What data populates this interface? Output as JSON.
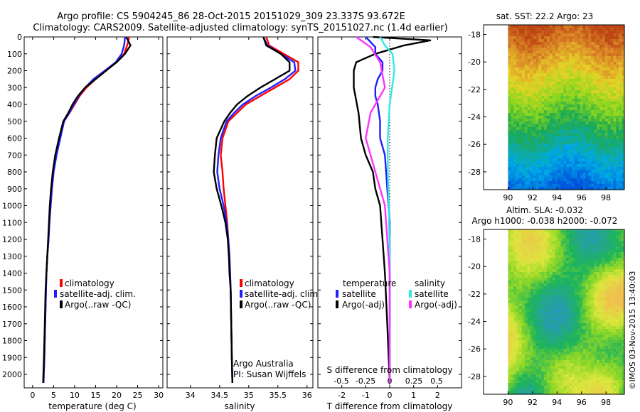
{
  "header": {
    "line1": "Argo profile: CS 5904245_86 28-Oct-2015 20151029_309 23.337S 93.672E",
    "line2": "Climatology: CARS2009. Satellite-adjusted climatology: synTS_20151027.nc (1.4d earlier)"
  },
  "colors": {
    "climatology": "#ff0000",
    "satellite": "#1f1fff",
    "argo": "#000000",
    "s_satellite": "#33e8e8",
    "s_argo": "#ff33ff"
  },
  "depth_axis": {
    "ylim": [
      0,
      2080
    ],
    "ticks": [
      0,
      100,
      200,
      300,
      400,
      500,
      600,
      700,
      800,
      900,
      1000,
      1100,
      1200,
      1300,
      1400,
      1500,
      1600,
      1700,
      1800,
      1900,
      2000
    ]
  },
  "panels": {
    "temperature": {
      "xlabel": "temperature (deg C)",
      "xlim": [
        -2,
        31
      ],
      "xticks": [
        0,
        5,
        10,
        15,
        20,
        25,
        30
      ],
      "legend": [
        "climatology",
        "satellite-adj. clim.",
        "Argo(..raw -QC)"
      ]
    },
    "salinity": {
      "xlabel": "salinity",
      "xlim": [
        33.6,
        36.1
      ],
      "xticks": [
        34,
        34.5,
        35,
        35.5,
        36
      ],
      "legend": [
        "climatology",
        "satellite-adj. clim.",
        "Argo(..raw -QC)"
      ],
      "note_line1": "Argo Australia",
      "note_line2": "PI: Susan Wijffels"
    },
    "difference": {
      "xlabel": "T difference from climatology",
      "top_label": "S difference from climatology",
      "xlim": [
        -3,
        3
      ],
      "xticks": [
        -2,
        -1,
        0,
        1,
        2
      ],
      "s_ticks": [
        "-0.5",
        "-0.25",
        "0",
        "0.25",
        "0.5"
      ],
      "legend_temperature_title": "temperature",
      "legend_salinity_title": "salinity",
      "legend": [
        "satellite",
        "Argo(-adj)",
        "satellite",
        "Argo(-adj)"
      ]
    }
  },
  "maps": {
    "sst": {
      "title": "sat. SST: 22.2 Argo: 23",
      "ylim": [
        -29.3,
        -17.3
      ],
      "yticks": [
        -18,
        -20,
        -22,
        -24,
        -26,
        -28
      ],
      "xticks": [
        90,
        92,
        94,
        96,
        98
      ],
      "xlim": [
        88,
        99.5
      ]
    },
    "sla": {
      "title_line1": "Altim. SLA: -0.032",
      "title_line2": "Argo h1000: -0.038 h2000: -0.072",
      "ylim": [
        -29.3,
        -17.3
      ],
      "yticks": [
        -18,
        -20,
        -22,
        -24,
        -26,
        -28
      ],
      "xticks": [
        90,
        92,
        94,
        96,
        98
      ],
      "xlim": [
        88,
        99.5
      ]
    }
  },
  "stamp": "©IMOS 03-Nov-2015 13:40:03",
  "chart_data": [
    {
      "type": "line",
      "panel": "temperature",
      "xlabel": "temperature (deg C)",
      "ylim": [
        0,
        2080
      ],
      "series": [
        {
          "name": "climatology",
          "x": [
            23.0,
            22.5,
            21.8,
            20.0,
            17.5,
            15.0,
            12.8,
            11.2,
            10.0,
            8.8,
            7.5,
            6.5,
            5.5,
            5.0,
            4.6,
            4.3,
            4.0,
            3.8,
            3.5,
            3.3,
            3.2,
            3.0,
            2.8,
            2.6
          ],
          "y": [
            0,
            50,
            100,
            150,
            200,
            250,
            300,
            350,
            400,
            450,
            500,
            600,
            700,
            800,
            900,
            1000,
            1100,
            1200,
            1300,
            1400,
            1500,
            1700,
            1900,
            2050
          ]
        },
        {
          "name": "satellite-adj. clim.",
          "x": [
            22.0,
            21.8,
            21.2,
            19.8,
            17.2,
            14.5,
            12.5,
            11.0,
            9.8,
            8.7,
            7.5,
            6.6,
            5.7,
            5.0,
            4.6,
            4.3,
            4.0,
            3.8,
            3.5,
            3.3,
            3.2,
            3.0,
            2.8,
            2.6
          ],
          "y": [
            0,
            50,
            100,
            150,
            200,
            250,
            300,
            350,
            400,
            450,
            500,
            600,
            700,
            800,
            900,
            1000,
            1100,
            1200,
            1300,
            1400,
            1500,
            1700,
            1900,
            2050
          ]
        },
        {
          "name": "Argo(..raw -QC)",
          "x": [
            22.3,
            23.3,
            22.0,
            20.0,
            17.5,
            15.0,
            12.5,
            10.8,
            9.5,
            8.5,
            7.3,
            6.3,
            5.4,
            4.8,
            4.4,
            4.1,
            3.9,
            3.7,
            3.5,
            3.3,
            3.1,
            2.9,
            2.7,
            2.5
          ],
          "y": [
            0,
            50,
            100,
            150,
            200,
            250,
            300,
            350,
            400,
            450,
            500,
            600,
            700,
            800,
            900,
            1000,
            1100,
            1200,
            1300,
            1400,
            1500,
            1700,
            1900,
            2050
          ]
        }
      ]
    },
    {
      "type": "line",
      "panel": "salinity",
      "xlabel": "salinity",
      "ylim": [
        0,
        2080
      ],
      "series": [
        {
          "name": "climatology",
          "x": [
            35.3,
            35.35,
            35.6,
            35.85,
            35.85,
            35.7,
            35.45,
            35.2,
            34.95,
            34.8,
            34.65,
            34.55,
            34.52,
            34.55,
            34.57,
            34.6,
            34.63,
            34.65,
            34.67,
            34.68,
            34.69,
            34.7,
            34.71,
            34.72
          ],
          "y": [
            0,
            50,
            100,
            150,
            200,
            250,
            300,
            350,
            400,
            450,
            500,
            600,
            700,
            800,
            900,
            1000,
            1100,
            1200,
            1300,
            1400,
            1500,
            1700,
            1900,
            2050
          ]
        },
        {
          "name": "satellite-adj. clim.",
          "x": [
            35.25,
            35.32,
            35.55,
            35.78,
            35.8,
            35.62,
            35.38,
            35.12,
            34.9,
            34.75,
            34.62,
            34.52,
            34.48,
            34.46,
            34.5,
            34.57,
            34.62,
            34.65,
            34.67,
            34.68,
            34.69,
            34.7,
            34.71,
            34.72
          ],
          "y": [
            0,
            50,
            100,
            150,
            200,
            250,
            300,
            350,
            400,
            450,
            500,
            600,
            700,
            800,
            900,
            1000,
            1100,
            1200,
            1300,
            1400,
            1500,
            1700,
            1900,
            2050
          ]
        },
        {
          "name": "Argo(..raw -QC)",
          "x": [
            35.25,
            35.3,
            35.55,
            35.7,
            35.7,
            35.45,
            35.2,
            34.98,
            34.8,
            34.68,
            34.58,
            34.45,
            34.42,
            34.4,
            34.45,
            34.53,
            34.6,
            34.64,
            34.66,
            34.67,
            34.69,
            34.7,
            34.71,
            34.72
          ],
          "y": [
            0,
            50,
            100,
            150,
            200,
            250,
            300,
            350,
            400,
            450,
            500,
            600,
            700,
            800,
            900,
            1000,
            1100,
            1200,
            1300,
            1400,
            1500,
            1700,
            1900,
            2050
          ]
        }
      ]
    },
    {
      "type": "line",
      "panel": "difference",
      "xlabel": "T difference from climatology",
      "ylim": [
        0,
        2080
      ],
      "series": [
        {
          "name": "T satellite",
          "x": [
            -1.0,
            -0.6,
            -0.6,
            -0.3,
            -0.3,
            -0.5,
            -0.6,
            -0.6,
            -0.5,
            -0.4,
            -0.4,
            -0.2,
            -0.1,
            0.0,
            0.0,
            0.0,
            0.0,
            0.0
          ],
          "y": [
            0,
            60,
            100,
            150,
            200,
            250,
            300,
            350,
            400,
            500,
            600,
            700,
            900,
            1100,
            1300,
            1500,
            1800,
            2050
          ]
        },
        {
          "name": "T Argo(-adj)",
          "x": [
            -0.7,
            1.7,
            0.6,
            -0.6,
            -1.4,
            -1.5,
            -1.5,
            -1.3,
            -1.2,
            -1.0,
            -0.7,
            -0.6,
            -0.4,
            -0.3,
            -0.2,
            -0.1,
            0.0
          ],
          "y": [
            0,
            20,
            50,
            100,
            150,
            200,
            300,
            450,
            600,
            700,
            800,
            900,
            1000,
            1200,
            1400,
            1700,
            2050
          ]
        },
        {
          "name": "S satellite",
          "x": [
            -0.1,
            -0.05,
            0.03,
            0.05,
            0.0,
            -0.02,
            -0.02,
            -0.01,
            0.0,
            0.0,
            0.0
          ],
          "y": [
            0,
            50,
            100,
            200,
            400,
            600,
            800,
            1000,
            1300,
            1700,
            2050
          ]
        },
        {
          "name": "S Argo(-adj)",
          "x": [
            -0.35,
            -0.2,
            -0.1,
            -0.05,
            -0.2,
            -0.25,
            -0.15,
            -0.05,
            0.0,
            0.0
          ],
          "y": [
            0,
            60,
            150,
            300,
            450,
            600,
            800,
            1000,
            1400,
            2050
          ]
        }
      ]
    },
    {
      "type": "heatmap",
      "panel": "sst map",
      "title": "sat. SST: 22.2 Argo: 23"
    },
    {
      "type": "heatmap",
      "panel": "sla map",
      "title": "Altim. SLA: -0.032"
    }
  ]
}
